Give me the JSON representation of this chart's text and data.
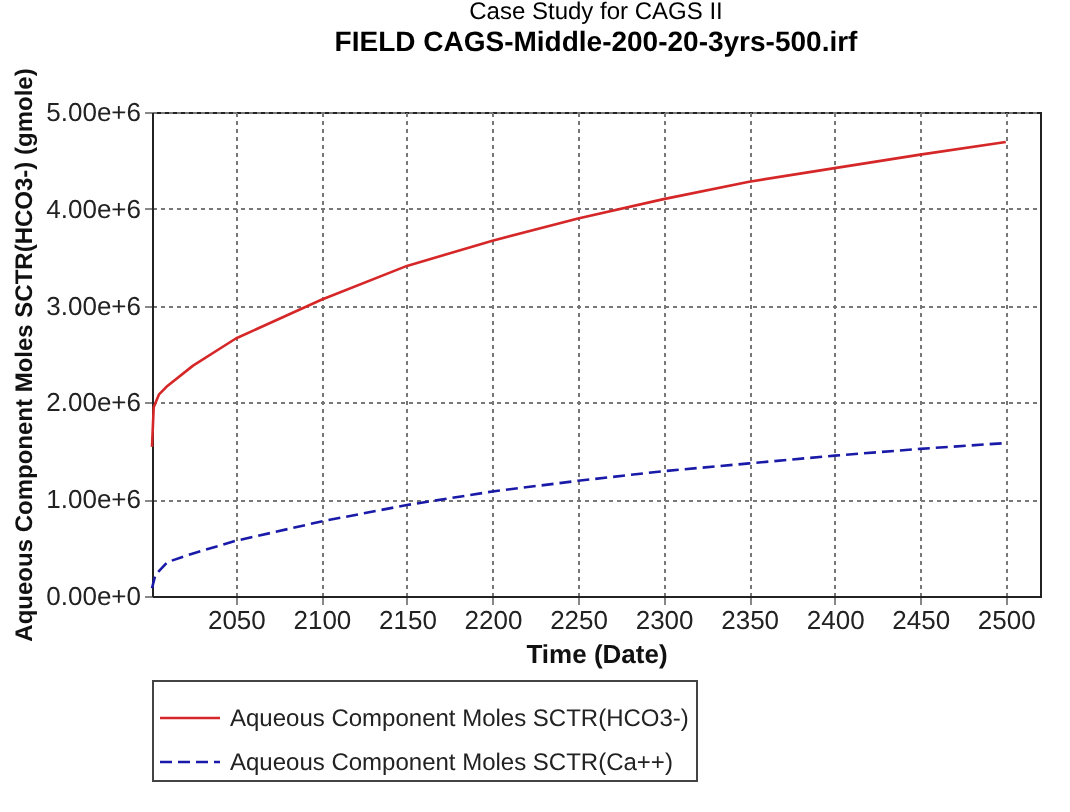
{
  "chart_data": {
    "type": "line",
    "title": "FIELD CAGS-Middle-200-20-3yrs-500.irf",
    "subtitle": "Case Study for CAGS II",
    "xlabel": "Time (Date)",
    "ylabel": "Aqueous Component Moles SCTR(HCO3-) (gmole)",
    "xlim": [
      2001,
      2520
    ],
    "xticks": [
      2050,
      2100,
      2150,
      2200,
      2250,
      2300,
      2350,
      2400,
      2450,
      2500
    ],
    "ylim": [
      0,
      5000000
    ],
    "yticks": [
      {
        "value": 0,
        "label": "0.00e+0"
      },
      {
        "value": 1000000,
        "label": "1.00e+6"
      },
      {
        "value": 2000000,
        "label": "2.00e+6"
      },
      {
        "value": 3000000,
        "label": "3.00e+6"
      },
      {
        "value": 4000000,
        "label": "4.00e+6"
      },
      {
        "value": 5000000,
        "label": "5.00e+6"
      }
    ],
    "grid": true,
    "legend": "bottom",
    "marker": "none",
    "series": [
      {
        "name": "Aqueous Component Moles SCTR(HCO3-)",
        "color": "#d62728",
        "line_style": "solid",
        "x": [
          2001,
          2002,
          2005,
          2010,
          2025,
          2050,
          2100,
          2150,
          2200,
          2250,
          2300,
          2350,
          2400,
          2450,
          2500
        ],
        "values": [
          1540000,
          1950000,
          2080000,
          2170000,
          2380000,
          2660000,
          3060000,
          3410000,
          3670000,
          3900000,
          4100000,
          4280000,
          4420000,
          4560000,
          4690000
        ]
      },
      {
        "name": "Aqueous Component Moles SCTR(Ca++)",
        "color": "#1a1aa8",
        "line_style": "dashed",
        "x": [
          2001,
          2003,
          2010,
          2025,
          2050,
          2100,
          2150,
          2200,
          2250,
          2300,
          2350,
          2400,
          2450,
          2500
        ],
        "values": [
          80000,
          220000,
          350000,
          440000,
          570000,
          770000,
          940000,
          1080000,
          1190000,
          1290000,
          1370000,
          1450000,
          1520000,
          1580000
        ]
      }
    ]
  }
}
